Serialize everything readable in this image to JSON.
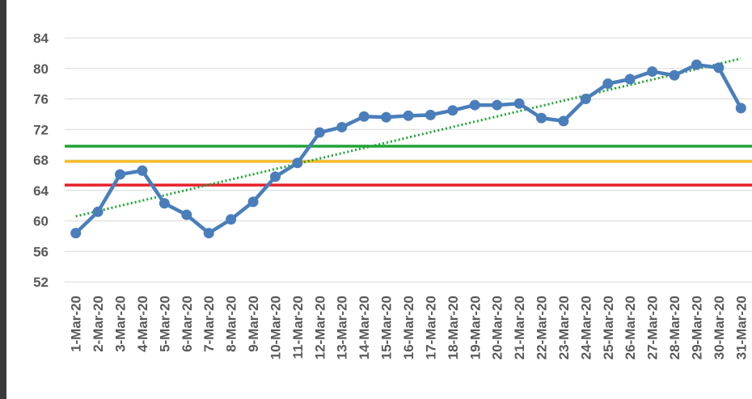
{
  "chart_data": {
    "type": "line",
    "categories": [
      "1-Mar-20",
      "2-Mar-20",
      "3-Mar-20",
      "4-Mar-20",
      "5-Mar-20",
      "6-Mar-20",
      "7-Mar-20",
      "8-Mar-20",
      "9-Mar-20",
      "10-Mar-20",
      "11-Mar-20",
      "12-Mar-20",
      "13-Mar-20",
      "14-Mar-20",
      "15-Mar-20",
      "16-Mar-20",
      "17-Mar-20",
      "18-Mar-20",
      "19-Mar-20",
      "20-Mar-20",
      "21-Mar-20",
      "22-Mar-20",
      "23-Mar-20",
      "24-Mar-20",
      "25-Mar-20",
      "26-Mar-20",
      "27-Mar-20",
      "28-Mar-20",
      "29-Mar-20",
      "30-Mar-20",
      "31-Mar-20"
    ],
    "series": [
      {
        "color": "#4a7ebb",
        "values": [
          58.4,
          61.2,
          66.1,
          66.6,
          62.3,
          60.8,
          58.4,
          60.2,
          62.5,
          65.8,
          67.6,
          71.6,
          72.3,
          73.7,
          73.6,
          73.8,
          73.9,
          74.5,
          75.2,
          75.2,
          75.4,
          73.5,
          73.1,
          76.0,
          78.0,
          78.6,
          79.6,
          79.1,
          80.5,
          80.1,
          74.8
        ]
      }
    ],
    "reference_lines": [
      {
        "value": 69.8,
        "color": "#21a336"
      },
      {
        "value": 67.8,
        "color": "#f5bd2a"
      },
      {
        "value": 64.7,
        "color": "#e8202a"
      }
    ],
    "trendline": {
      "values": [
        60.6,
        81.3
      ],
      "color": "#21a336"
    },
    "ylim": [
      52,
      88
    ],
    "yticks": [
      52,
      56,
      60,
      64,
      68,
      72,
      76,
      80,
      84
    ],
    "grid": true
  }
}
